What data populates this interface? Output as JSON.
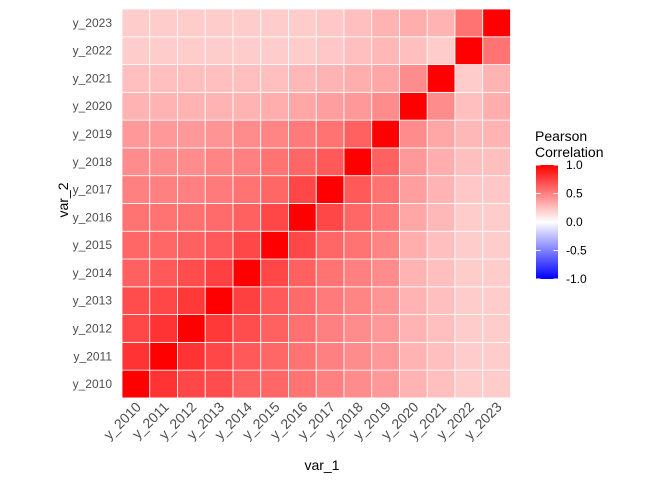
{
  "chart_data": {
    "type": "heatmap",
    "xlabel": "var_1",
    "ylabel": "var_2",
    "x_categories": [
      "y_2010",
      "y_2011",
      "y_2012",
      "y_2013",
      "y_2014",
      "y_2015",
      "y_2016",
      "y_2017",
      "y_2018",
      "y_2019",
      "y_2020",
      "y_2021",
      "y_2022",
      "y_2023"
    ],
    "y_categories": [
      "y_2010",
      "y_2011",
      "y_2012",
      "y_2013",
      "y_2014",
      "y_2015",
      "y_2016",
      "y_2017",
      "y_2018",
      "y_2019",
      "y_2020",
      "y_2021",
      "y_2022",
      "y_2023"
    ],
    "values": [
      [
        1.0,
        0.8,
        0.72,
        0.7,
        0.62,
        0.6,
        0.55,
        0.5,
        0.45,
        0.4,
        0.3,
        0.25,
        0.2,
        0.2
      ],
      [
        0.8,
        1.0,
        0.8,
        0.72,
        0.65,
        0.6,
        0.55,
        0.5,
        0.45,
        0.4,
        0.3,
        0.25,
        0.2,
        0.2
      ],
      [
        0.72,
        0.8,
        1.0,
        0.78,
        0.7,
        0.62,
        0.56,
        0.5,
        0.45,
        0.4,
        0.3,
        0.25,
        0.2,
        0.2
      ],
      [
        0.7,
        0.72,
        0.78,
        1.0,
        0.75,
        0.65,
        0.58,
        0.52,
        0.48,
        0.42,
        0.3,
        0.25,
        0.2,
        0.2
      ],
      [
        0.62,
        0.65,
        0.7,
        0.75,
        1.0,
        0.72,
        0.62,
        0.55,
        0.5,
        0.45,
        0.3,
        0.25,
        0.2,
        0.2
      ],
      [
        0.6,
        0.6,
        0.62,
        0.65,
        0.72,
        1.0,
        0.72,
        0.6,
        0.55,
        0.48,
        0.32,
        0.25,
        0.2,
        0.2
      ],
      [
        0.55,
        0.55,
        0.56,
        0.58,
        0.62,
        0.72,
        1.0,
        0.72,
        0.6,
        0.52,
        0.35,
        0.28,
        0.2,
        0.2
      ],
      [
        0.5,
        0.5,
        0.5,
        0.52,
        0.55,
        0.6,
        0.72,
        1.0,
        0.65,
        0.55,
        0.38,
        0.3,
        0.22,
        0.22
      ],
      [
        0.45,
        0.45,
        0.45,
        0.48,
        0.5,
        0.55,
        0.6,
        0.65,
        1.0,
        0.62,
        0.4,
        0.32,
        0.25,
        0.25
      ],
      [
        0.4,
        0.4,
        0.4,
        0.42,
        0.45,
        0.48,
        0.52,
        0.55,
        0.62,
        1.0,
        0.45,
        0.35,
        0.28,
        0.3
      ],
      [
        0.3,
        0.3,
        0.3,
        0.3,
        0.3,
        0.32,
        0.35,
        0.38,
        0.4,
        0.45,
        1.0,
        0.45,
        0.25,
        0.32
      ],
      [
        0.25,
        0.25,
        0.25,
        0.25,
        0.25,
        0.25,
        0.28,
        0.3,
        0.32,
        0.35,
        0.45,
        1.0,
        0.2,
        0.3
      ],
      [
        0.2,
        0.2,
        0.2,
        0.2,
        0.2,
        0.2,
        0.2,
        0.22,
        0.25,
        0.28,
        0.25,
        0.2,
        1.0,
        0.55
      ],
      [
        0.2,
        0.2,
        0.2,
        0.2,
        0.2,
        0.2,
        0.2,
        0.22,
        0.25,
        0.3,
        0.32,
        0.3,
        0.55,
        1.0
      ]
    ],
    "value_range": [
      -1,
      1
    ],
    "color_low": "#0000ff",
    "color_mid": "#ffffff",
    "color_high": "#ff0000",
    "legend": {
      "title_line1": "Pearson",
      "title_line2": "Correlation",
      "ticks": [
        "1.0",
        "0.5",
        "0.0",
        "-0.5",
        "-1.0"
      ],
      "tick_values": [
        1.0,
        0.5,
        0.0,
        -0.5,
        -1.0
      ],
      "position": "right"
    },
    "grid": false
  }
}
